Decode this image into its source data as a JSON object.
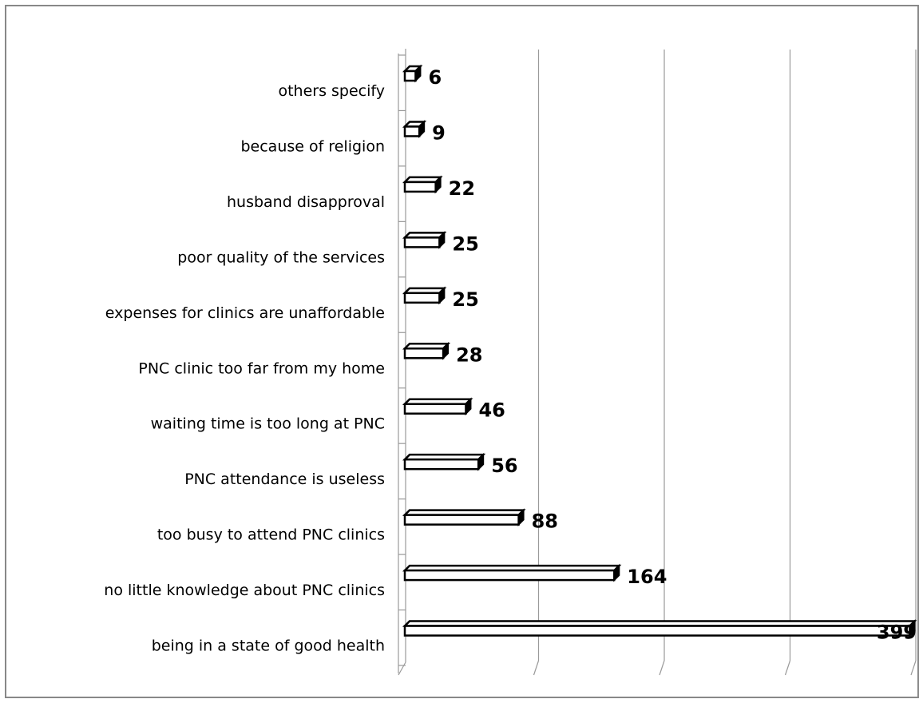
{
  "chart_data": {
    "type": "bar",
    "orientation": "horizontal",
    "categories": [
      "others specify",
      "because of religion",
      "husband disapproval",
      "poor quality of the services",
      "expenses for clinics are unaffordable",
      "PNC clinic too far from my home",
      "waiting time is too long at PNC",
      "PNC attendance is useless",
      "too busy to attend PNC clinics",
      "no little knowledge about PNC clinics",
      "being in a state of good health"
    ],
    "values": [
      6,
      9,
      22,
      25,
      25,
      28,
      46,
      56,
      88,
      164,
      399
    ],
    "xlim": [
      0,
      400
    ],
    "grid": true,
    "legend": "none",
    "style": "3d-bar"
  }
}
